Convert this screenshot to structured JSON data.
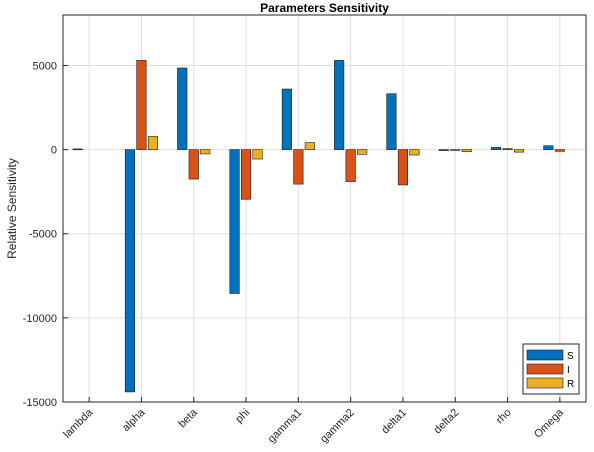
{
  "chart_data": {
    "type": "bar",
    "title": "Parameters Sensitivity",
    "ylabel": "Relative Sensitivity",
    "xlabel": "",
    "categories": [
      "lambda",
      "alpha",
      "beta",
      "phi",
      "gamma1",
      "gamma2",
      "delta1",
      "delta2",
      "rho",
      "Omega"
    ],
    "ylim": [
      -15000,
      8000
    ],
    "yticks": [
      -15000,
      -10000,
      -5000,
      0,
      5000
    ],
    "ytick_labels": [
      "-15000",
      "-10000",
      "-5000",
      "0",
      "5000"
    ],
    "grid": true,
    "legend_position": "bottom-right",
    "series": [
      {
        "name": "S",
        "color": "#0072BD",
        "values": [
          40,
          -14400,
          4850,
          -8550,
          3600,
          5300,
          3320,
          -60,
          130,
          230
        ]
      },
      {
        "name": "I",
        "color": "#D95319",
        "values": [
          0,
          5300,
          -1750,
          -2950,
          -2050,
          -1900,
          -2100,
          -40,
          60,
          -100
        ]
      },
      {
        "name": "R",
        "color": "#EDB120",
        "values": [
          0,
          780,
          -260,
          -560,
          420,
          -280,
          -320,
          -120,
          -150,
          0
        ]
      }
    ]
  }
}
